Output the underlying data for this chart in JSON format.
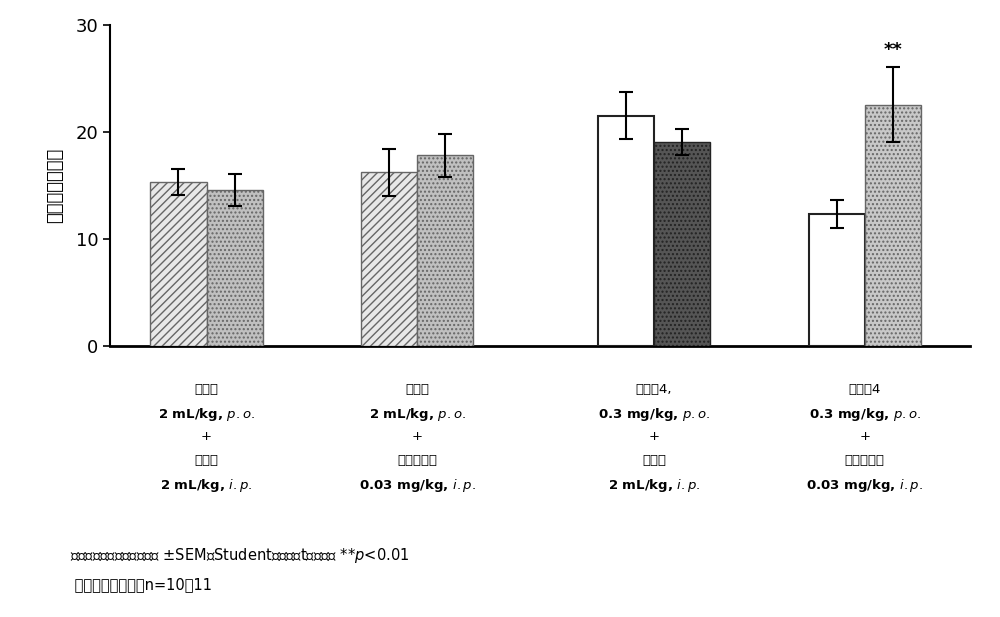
{
  "groups": [
    {
      "bars": [
        {
          "value": 15.3,
          "error": 1.2,
          "facecolor": "#e8e8e8",
          "hatch": "////",
          "edgecolor": "#666666",
          "lw": 1.0
        },
        {
          "value": 14.5,
          "error": 1.5,
          "facecolor": "#c0c0c0",
          "hatch": "....",
          "edgecolor": "#666666",
          "lw": 1.0
        }
      ],
      "label_lines": [
        "载剂，",
        "2 mL/kg, $p.o.$",
        "+",
        "载剂，",
        "2 mL/kg, $i.p.$"
      ]
    },
    {
      "bars": [
        {
          "value": 16.2,
          "error": 2.2,
          "facecolor": "#e8e8e8",
          "hatch": "////",
          "edgecolor": "#666666",
          "lw": 1.0
        },
        {
          "value": 17.8,
          "error": 2.0,
          "facecolor": "#c0c0c0",
          "hatch": "....",
          "edgecolor": "#666666",
          "lw": 1.0
        }
      ],
      "label_lines": [
        "载剂，",
        "2 mL/kg, $p.o.$",
        "+",
        "多奎哌齐，",
        "0.03 mg/kg, $i.p.$"
      ]
    },
    {
      "bars": [
        {
          "value": 21.5,
          "error": 2.2,
          "facecolor": "white",
          "hatch": "",
          "edgecolor": "#222222",
          "lw": 1.5
        },
        {
          "value": 19.0,
          "error": 1.2,
          "facecolor": "#555555",
          "hatch": "....",
          "edgecolor": "#222222",
          "lw": 1.0
        }
      ],
      "label_lines": [
        "实施例4,",
        "0.3 mg/kg, $p.o.$",
        "+",
        "载剂，",
        "2 mL/kg, $i.p.$"
      ]
    },
    {
      "bars": [
        {
          "value": 12.3,
          "error": 1.3,
          "facecolor": "white",
          "hatch": "",
          "edgecolor": "#222222",
          "lw": 1.5
        },
        {
          "value": 22.5,
          "error": 3.5,
          "facecolor": "#c8c8c8",
          "hatch": "....",
          "edgecolor": "#666666",
          "lw": 1.0
        }
      ],
      "label_lines": [
        "实施例4",
        "0.3 mg/kg, $p.o.$",
        "+",
        "多奎哌齐，",
        "0.03 mg/kg, $i.p.$"
      ]
    }
  ],
  "ylabel": "探索时间（秒）",
  "ylim": [
    0,
    30
  ],
  "yticks": [
    0,
    10,
    20,
    30
  ],
  "bar_width": 0.32,
  "group_centers": [
    0.75,
    1.95,
    3.3,
    4.5
  ],
  "annotation_text": "**",
  "annotation_group": 3,
  "annotation_bar": 1,
  "footnote_line1": "数据表示探索时间的平均值 ±SEM（Student配对双尻t检验）， **$p$<0.01",
  "footnote_line2": " 相对于熟悉物体，n=10至11",
  "background_color": "#ffffff",
  "figsize": [
    10.0,
    6.17
  ]
}
